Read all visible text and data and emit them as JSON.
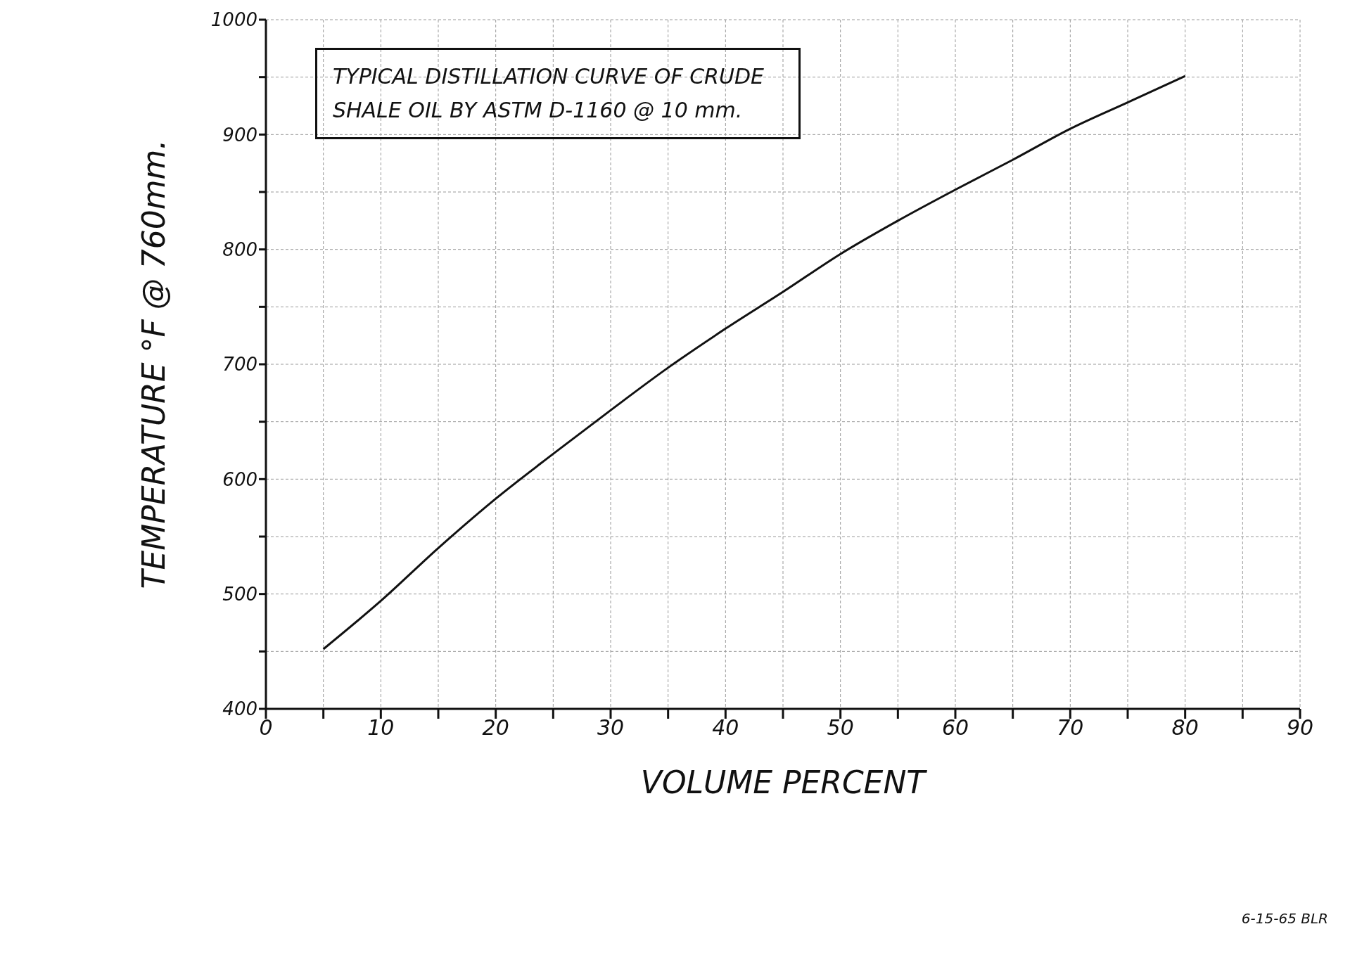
{
  "chart_data": {
    "type": "line",
    "title": "TYPICAL DISTILLATION CURVE OF CRUDE SHALE OIL BY ASTM D-1160 @ 10 mm.",
    "xlabel": "VOLUME PERCENT",
    "ylabel": "TEMPERATURE °F @ 760mm.",
    "x": [
      5,
      10,
      15,
      20,
      25,
      30,
      35,
      40,
      45,
      50,
      55,
      60,
      65,
      70,
      75,
      80
    ],
    "series": [
      {
        "color": "#111111",
        "values": [
          452,
          494,
          540,
          583,
          622,
          660,
          697,
          731,
          763,
          796,
          825,
          852,
          878,
          905,
          928,
          951
        ]
      }
    ],
    "xlim": [
      0,
      90
    ],
    "ylim": [
      400,
      1000
    ],
    "xticks": [
      0,
      {
        "value": 5,
        "label": null
      },
      10,
      {
        "value": 15,
        "label": null
      },
      20,
      {
        "value": 25,
        "label": null
      },
      30,
      {
        "value": 35,
        "label": null
      },
      40,
      {
        "value": 45,
        "label": null
      },
      50,
      {
        "value": 55,
        "label": null
      },
      60,
      {
        "value": 65,
        "label": null
      },
      70,
      {
        "value": 75,
        "label": null
      },
      80,
      {
        "value": 85,
        "label": null
      },
      90
    ],
    "yticks": [
      400,
      {
        "value": 450,
        "label": null
      },
      500,
      {
        "value": 550,
        "label": null
      },
      600,
      {
        "value": 650,
        "label": null
      },
      700,
      {
        "value": 750,
        "label": null
      },
      800,
      {
        "value": 850,
        "label": null
      },
      900,
      {
        "value": 950,
        "label": null
      },
      1000
    ],
    "grid": true,
    "marker": "none",
    "line_style": "solid",
    "annotations": [
      "6-15-65 BLR"
    ]
  }
}
